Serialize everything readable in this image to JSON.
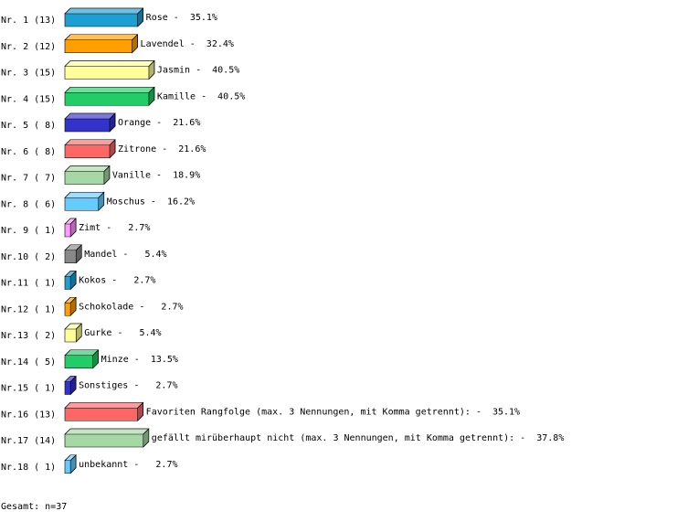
{
  "chart_data": {
    "type": "bar3d",
    "row_labels": [
      "Nr. 1 (13)",
      "Nr. 2 (12)",
      "Nr. 3 (15)",
      "Nr. 4 (15)",
      "Nr. 5 ( 8)",
      "Nr. 6 ( 8)",
      "Nr. 7 ( 7)",
      "Nr. 8 ( 6)",
      "Nr. 9 ( 1)",
      "Nr.10 ( 2)",
      "Nr.11 ( 1)",
      "Nr.12 ( 1)",
      "Nr.13 ( 2)",
      "Nr.14 ( 5)",
      "Nr.15 ( 1)",
      "Nr.16 (13)",
      "Nr.17 (14)",
      "Nr.18 ( 1)"
    ],
    "values": [
      35.1,
      32.4,
      40.5,
      40.5,
      21.6,
      21.6,
      18.9,
      16.2,
      2.7,
      5.4,
      2.7,
      2.7,
      5.4,
      13.5,
      2.7,
      35.1,
      37.8,
      2.7
    ],
    "value_labels": [
      "Rose -  35.1%",
      "Lavendel -  32.4%",
      "Jasmin -  40.5%",
      "Kamille -  40.5%",
      "Orange -  21.6%",
      "Zitrone -  21.6%",
      "Vanille -  18.9%",
      "Moschus -  16.2%",
      "Zimt -   2.7%",
      "Mandel -   5.4%",
      "Kokos -   2.7%",
      "Schokolade -   2.7%",
      "Gurke -   5.4%",
      "Minze -  13.5%",
      "Sonstiges -   2.7%",
      "Favoriten Rangfolge (max. 3 Nennungen, mit Komma getrennt): -  35.1%",
      "gefällt mirüberhaupt nicht (max. 3 Nennungen, mit Komma getrennt): -  37.8%",
      "unbekannt -   2.7%"
    ],
    "colors": [
      "#1e9fd4",
      "#ff9f00",
      "#ffff99",
      "#22cc66",
      "#3333cc",
      "#ff6666",
      "#a6d8a6",
      "#66ccff",
      "#ff99ff",
      "#888888",
      "#1e9fd4",
      "#ff9f00",
      "#ffff99",
      "#22cc66",
      "#3333cc",
      "#ff6666",
      "#a6d8a6",
      "#66ccff"
    ],
    "footer": "Gesamt: n=37"
  }
}
